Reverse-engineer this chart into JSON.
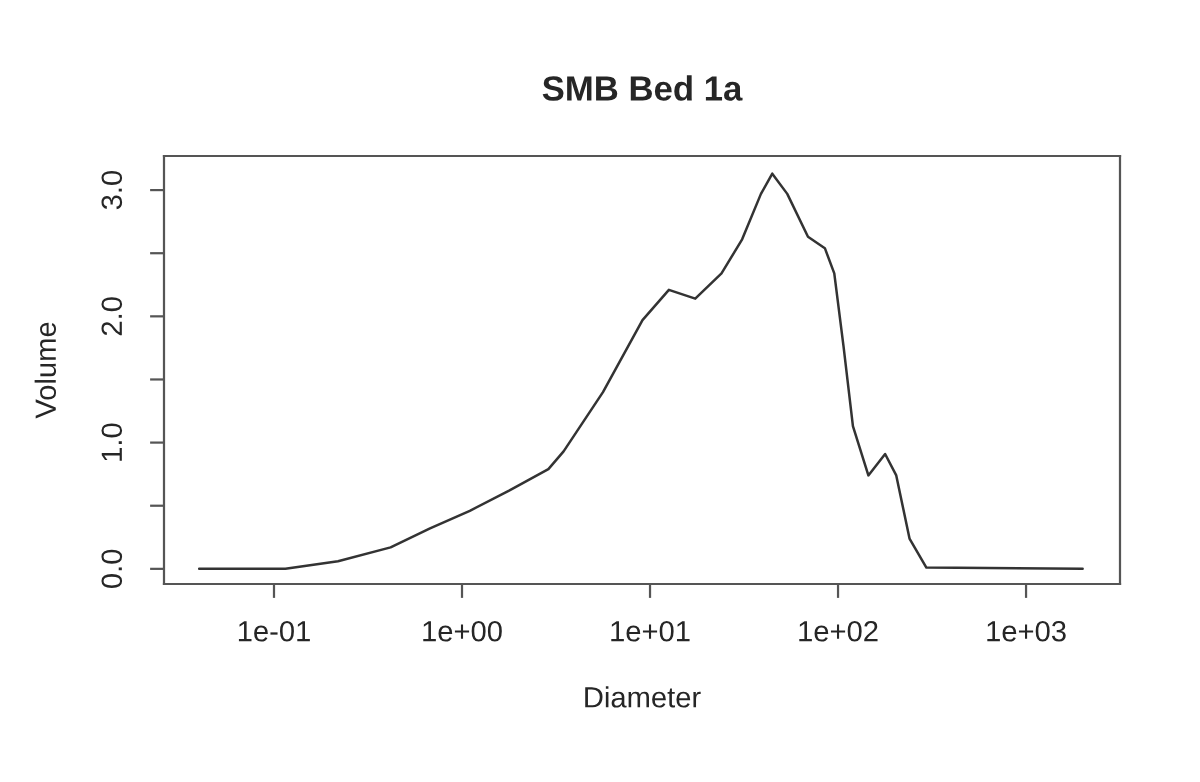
{
  "chart_data": {
    "type": "line",
    "title": "SMB Bed 1a",
    "xlabel": "Diameter",
    "ylabel": "Volume",
    "log": "x",
    "grid": false,
    "marker": "none",
    "line_style": "solid",
    "xlim": [
      0.026,
      3160
    ],
    "ylim": [
      -0.12,
      3.27
    ],
    "xticks": [
      {
        "value": 0.1,
        "label": "1e-01"
      },
      {
        "value": 1,
        "label": "1e+00"
      },
      {
        "value": 10,
        "label": "1e+01"
      },
      {
        "value": 100,
        "label": "1e+02"
      },
      {
        "value": 1000,
        "label": "1e+03"
      }
    ],
    "yticks": [
      {
        "value": 0,
        "label": "0.0"
      },
      {
        "value": 0.5,
        "label": null
      },
      {
        "value": 1,
        "label": "1.0"
      },
      {
        "value": 1.5,
        "label": null
      },
      {
        "value": 2,
        "label": "2.0"
      },
      {
        "value": 2.5,
        "label": null
      },
      {
        "value": 3,
        "label": "3.0"
      }
    ],
    "x": [
      0.04,
      0.115,
      0.219,
      0.417,
      0.676,
      1.1,
      1.78,
      2.88,
      3.47,
      5.62,
      9.12,
      12.6,
      17.4,
      24.0,
      30.9,
      38.9,
      44.7,
      53.7,
      69.2,
      85.1,
      95.5,
      107,
      120,
      145,
      178,
      204,
      240,
      295,
      2000
    ],
    "series": [
      {
        "color": "#333333",
        "values": [
          0,
          0,
          0.06,
          0.17,
          0.32,
          0.46,
          0.62,
          0.79,
          0.93,
          1.4,
          1.97,
          2.21,
          2.14,
          2.34,
          2.61,
          2.97,
          3.13,
          2.97,
          2.63,
          2.54,
          2.34,
          1.76,
          1.13,
          0.74,
          0.91,
          0.74,
          0.24,
          0.01,
          0
        ]
      }
    ]
  }
}
